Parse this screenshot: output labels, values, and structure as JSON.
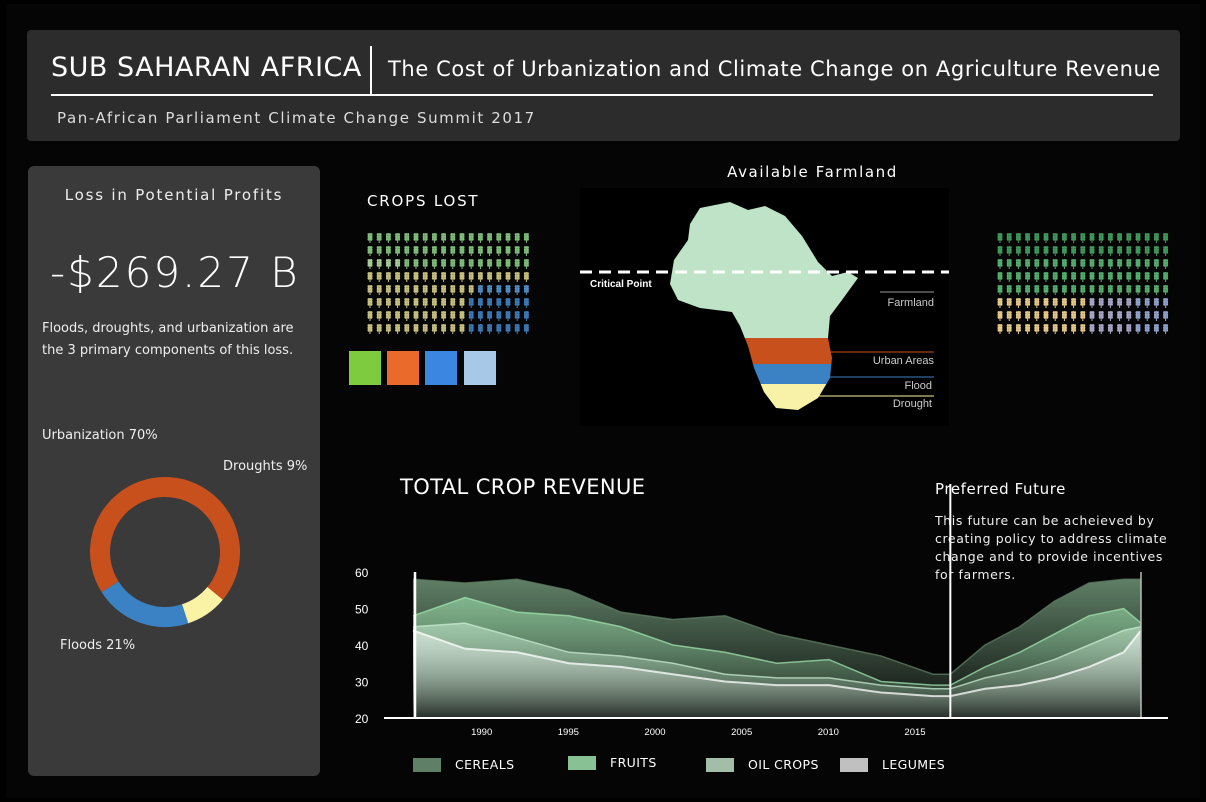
{
  "header": {
    "region": "SUB SAHARAN AFRICA",
    "title": "The Cost of Urbanization and Climate Change on Agriculture Revenue",
    "subtitle": "Pan-African Parliament Climate Change Summit 2017"
  },
  "sidebar": {
    "title": "Loss in Potential Profits",
    "value": "-$269.27 B",
    "description": "Floods, droughts, and urbanization are the 3 primary components of this loss."
  },
  "crops": {
    "title": "CROPS LOST",
    "swatch_colors": [
      "#7ecb3f",
      "#ea6a2c",
      "#3a86e0",
      "#a7c8e6"
    ]
  },
  "farmland": {
    "title": "Available Farmland",
    "labels": {
      "critical_point": "Critical Point",
      "farmland": "Farmland",
      "urban": "Urban Areas",
      "flood": "Flood",
      "drought": "Drought"
    },
    "colors": {
      "farmland": "#bfe3c7",
      "urban": "#c8501d",
      "flood": "#3b82c4",
      "drought": "#f8f2a8"
    }
  },
  "preferred_future": {
    "title": "Preferred Future",
    "description": "This future can be acheieved by creating policy to address climate change and to provide incentives for farmers."
  },
  "chart_data": [
    {
      "type": "pie",
      "title": "",
      "categories": [
        "Urbanization",
        "Floods",
        "Droughts"
      ],
      "labels": [
        "Urbanization 70%",
        "Floods 21%",
        "Droughts 9%"
      ],
      "values": [
        70,
        21,
        9
      ],
      "colors": [
        "#c8501d",
        "#3b82c4",
        "#faf3a6"
      ]
    },
    {
      "type": "area",
      "title": "TOTAL CROP REVENUE",
      "xlabel": "",
      "ylabel": "",
      "ylim": [
        20,
        60
      ],
      "xlim": [
        1987,
        2031
      ],
      "yticks": [
        20,
        30,
        40,
        50,
        60
      ],
      "xticks": [
        1990,
        1995,
        2000,
        2005,
        2010,
        2015
      ],
      "preferred_future_start": 2019,
      "legend": "bottom",
      "x": [
        1988,
        1991,
        1994,
        1997,
        2000,
        2003,
        2006,
        2009,
        2012,
        2015,
        2018,
        2019,
        2021,
        2023,
        2025,
        2027,
        2029,
        2030
      ],
      "series": [
        {
          "name": "CEREALS",
          "color": "#5f7f66",
          "opacity": 0.85,
          "values": [
            58,
            57,
            58,
            55,
            49,
            47,
            48,
            43,
            40,
            37,
            32,
            32,
            40,
            45,
            52,
            57,
            58,
            58
          ]
        },
        {
          "name": "FRUITS",
          "color": "#9fe3ae",
          "opacity": 0.45,
          "values": [
            48,
            53,
            49,
            48,
            45,
            40,
            38,
            35,
            36,
            30,
            29,
            29,
            34,
            38,
            43,
            48,
            50,
            46
          ]
        },
        {
          "name": "OIL CROPS",
          "color": "#c9ecd2",
          "opacity": 0.4,
          "values": [
            45,
            46,
            42,
            38,
            37,
            35,
            32,
            31,
            31,
            29,
            28,
            28,
            31,
            33,
            36,
            40,
            44,
            45
          ]
        },
        {
          "name": "LEGUMES",
          "color": "#ffffff",
          "opacity": 0.35,
          "values": [
            44,
            39,
            38,
            35,
            34,
            32,
            30,
            29,
            29,
            27,
            26,
            26,
            28,
            29,
            31,
            34,
            38,
            44
          ]
        }
      ]
    }
  ]
}
